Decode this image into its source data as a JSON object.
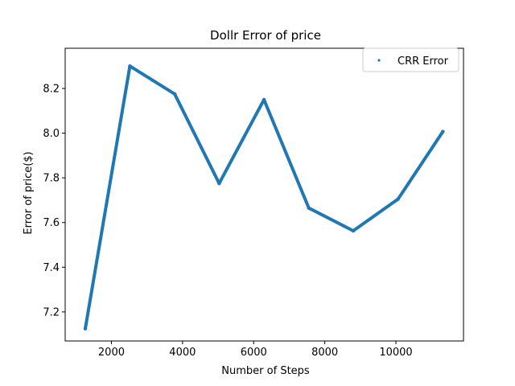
{
  "chart_data": {
    "type": "scatter",
    "title": "Dollr Error of price",
    "xlabel": "Number of Steps",
    "ylabel": "Error of price($)",
    "xlim": [
      700,
      11900
    ],
    "ylim": [
      7.07,
      8.38
    ],
    "x_ticks": [
      2000,
      4000,
      6000,
      8000,
      10000
    ],
    "y_ticks": [
      7.2,
      7.4,
      7.6,
      7.8,
      8.0,
      8.2
    ],
    "y_tick_labels": [
      "7.2",
      "7.4",
      "7.6",
      "7.8",
      "8.0",
      "8.2"
    ],
    "grid": false,
    "legend_position": "upper right",
    "series": [
      {
        "name": "CRR Error",
        "color": "#1f77b4",
        "marker": "point",
        "x": [
          1265,
          2520,
          3780,
          5030,
          6290,
          7550,
          8800,
          10060,
          11320
        ],
        "y": [
          7.125,
          8.3,
          8.175,
          7.775,
          8.15,
          7.665,
          7.563,
          7.705,
          8.007
        ]
      }
    ]
  }
}
